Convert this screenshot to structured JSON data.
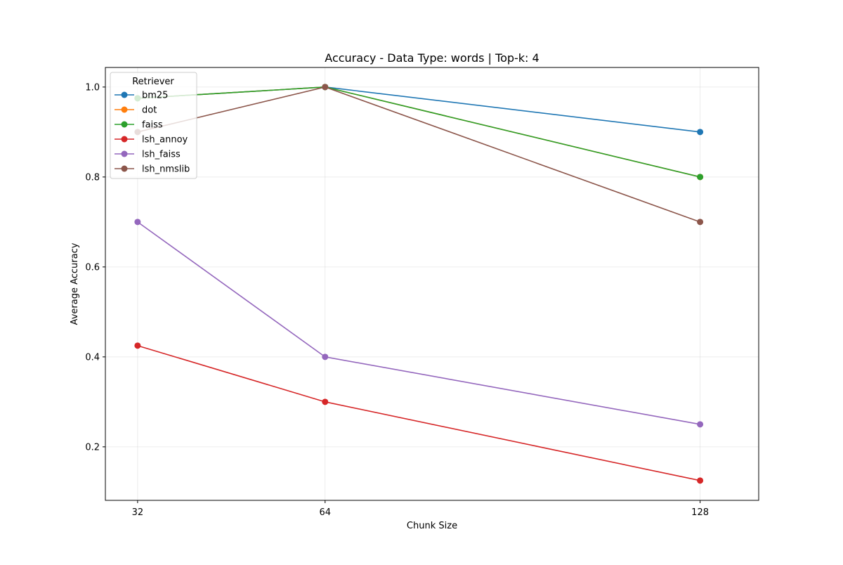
{
  "chart_data": {
    "type": "line",
    "title": "Accuracy - Data Type: words | Top-k: 4",
    "xlabel": "Chunk Size",
    "ylabel": "Average Accuracy",
    "x": [
      32,
      64,
      128
    ],
    "x_ticks": [
      "32",
      "64",
      "128"
    ],
    "y_ticks": [
      0.2,
      0.4,
      0.6,
      0.8,
      1.0
    ],
    "xlim": [
      26.5,
      138
    ],
    "ylim": [
      0.081,
      1.0435
    ],
    "grid": true,
    "legend": {
      "title": "Retriever",
      "placement": "top-left"
    },
    "series": [
      {
        "name": "bm25",
        "color": "#1f77b4",
        "values": [
          0.975,
          1.0,
          0.9
        ]
      },
      {
        "name": "dot",
        "color": "#ff7f0e",
        "values": [
          0.975,
          1.0,
          0.8
        ]
      },
      {
        "name": "faiss",
        "color": "#2ca02c",
        "values": [
          0.975,
          1.0,
          0.8
        ]
      },
      {
        "name": "lsh_annoy",
        "color": "#d62728",
        "values": [
          0.425,
          0.3,
          0.125
        ]
      },
      {
        "name": "lsh_faiss",
        "color": "#9467bd",
        "values": [
          0.7,
          0.4,
          0.25
        ]
      },
      {
        "name": "lsh_nmslib",
        "color": "#8c564b",
        "values": [
          0.9,
          1.0,
          0.7
        ]
      }
    ]
  }
}
